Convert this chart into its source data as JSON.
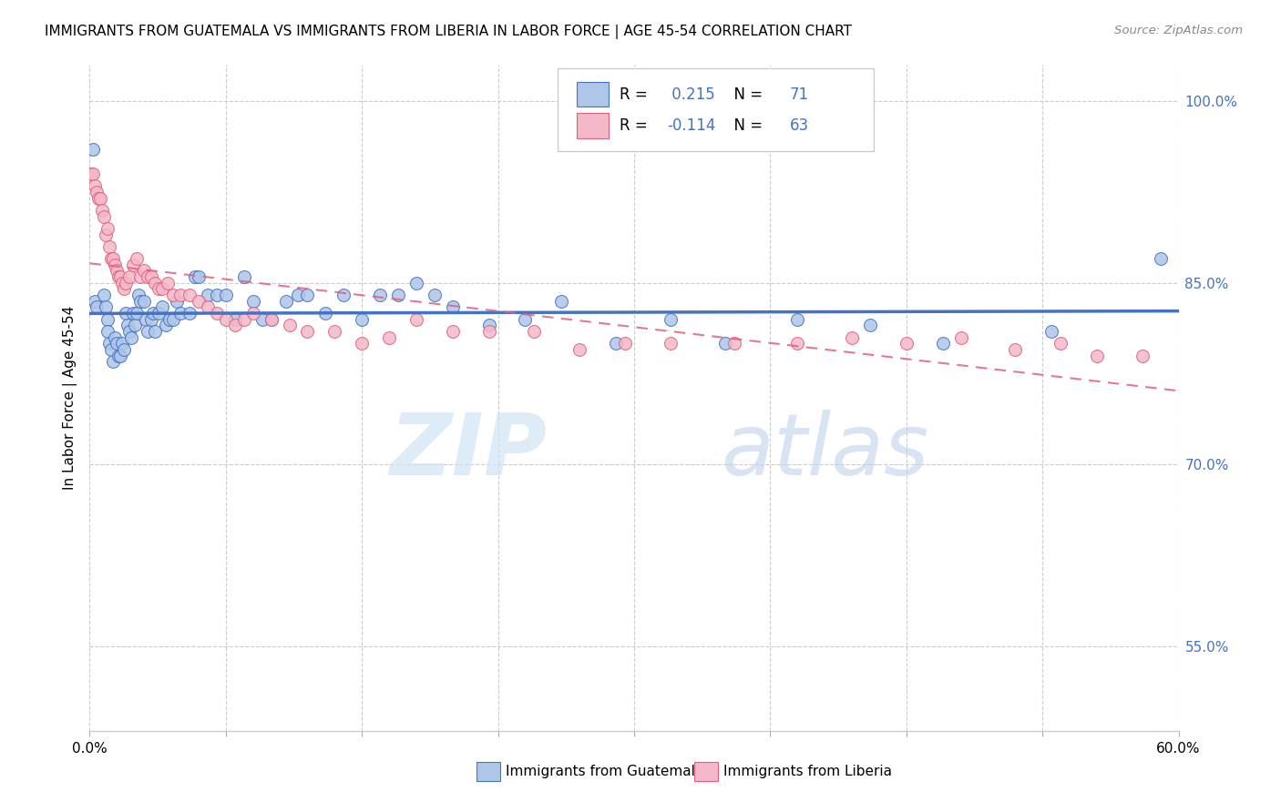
{
  "title": "IMMIGRANTS FROM GUATEMALA VS IMMIGRANTS FROM LIBERIA IN LABOR FORCE | AGE 45-54 CORRELATION CHART",
  "source": "Source: ZipAtlas.com",
  "ylabel": "In Labor Force | Age 45-54",
  "xmin": 0.0,
  "xmax": 0.6,
  "ymin": 0.48,
  "ymax": 1.03,
  "yticks": [
    0.55,
    0.7,
    0.85,
    1.0
  ],
  "ytick_labels": [
    "55.0%",
    "70.0%",
    "85.0%",
    "100.0%"
  ],
  "xticks": [
    0.0,
    0.075,
    0.15,
    0.225,
    0.3,
    0.375,
    0.45,
    0.525,
    0.6
  ],
  "xtick_labels": [
    "0.0%",
    "",
    "",
    "",
    "",
    "",
    "",
    "",
    "60.0%"
  ],
  "r_guatemala": 0.215,
  "n_guatemala": 71,
  "r_liberia": -0.114,
  "n_liberia": 63,
  "color_guatemala": "#aec6e8",
  "color_liberia": "#f4b8c8",
  "line_color_guatemala": "#4472C4",
  "line_color_liberia": "#e06080",
  "watermark_zip": "ZIP",
  "watermark_atlas": "atlas",
  "guatemala_x": [
    0.002,
    0.003,
    0.004,
    0.008,
    0.009,
    0.01,
    0.01,
    0.011,
    0.012,
    0.013,
    0.014,
    0.015,
    0.016,
    0.017,
    0.018,
    0.019,
    0.02,
    0.021,
    0.022,
    0.023,
    0.024,
    0.025,
    0.026,
    0.027,
    0.028,
    0.03,
    0.031,
    0.032,
    0.034,
    0.035,
    0.036,
    0.038,
    0.04,
    0.042,
    0.044,
    0.046,
    0.048,
    0.05,
    0.055,
    0.058,
    0.06,
    0.065,
    0.07,
    0.075,
    0.08,
    0.085,
    0.09,
    0.095,
    0.1,
    0.108,
    0.115,
    0.12,
    0.13,
    0.14,
    0.15,
    0.16,
    0.17,
    0.18,
    0.19,
    0.2,
    0.22,
    0.24,
    0.26,
    0.29,
    0.32,
    0.35,
    0.39,
    0.43,
    0.47,
    0.53,
    0.59
  ],
  "guatemala_y": [
    0.96,
    0.835,
    0.83,
    0.84,
    0.83,
    0.82,
    0.81,
    0.8,
    0.795,
    0.785,
    0.805,
    0.8,
    0.79,
    0.79,
    0.8,
    0.795,
    0.825,
    0.815,
    0.81,
    0.805,
    0.825,
    0.815,
    0.825,
    0.84,
    0.835,
    0.835,
    0.82,
    0.81,
    0.82,
    0.825,
    0.81,
    0.825,
    0.83,
    0.815,
    0.82,
    0.82,
    0.835,
    0.825,
    0.825,
    0.855,
    0.855,
    0.84,
    0.84,
    0.84,
    0.82,
    0.855,
    0.835,
    0.82,
    0.82,
    0.835,
    0.84,
    0.84,
    0.825,
    0.84,
    0.82,
    0.84,
    0.84,
    0.85,
    0.84,
    0.83,
    0.815,
    0.82,
    0.835,
    0.8,
    0.82,
    0.8,
    0.82,
    0.815,
    0.8,
    0.81,
    0.87
  ],
  "liberia_x": [
    0.001,
    0.002,
    0.003,
    0.004,
    0.005,
    0.006,
    0.007,
    0.008,
    0.009,
    0.01,
    0.011,
    0.012,
    0.013,
    0.014,
    0.015,
    0.016,
    0.017,
    0.018,
    0.019,
    0.02,
    0.022,
    0.024,
    0.026,
    0.028,
    0.03,
    0.032,
    0.034,
    0.036,
    0.038,
    0.04,
    0.043,
    0.046,
    0.05,
    0.055,
    0.06,
    0.065,
    0.07,
    0.075,
    0.08,
    0.085,
    0.09,
    0.1,
    0.11,
    0.12,
    0.135,
    0.15,
    0.165,
    0.18,
    0.2,
    0.22,
    0.245,
    0.27,
    0.295,
    0.32,
    0.355,
    0.39,
    0.42,
    0.45,
    0.48,
    0.51,
    0.535,
    0.555,
    0.58
  ],
  "liberia_y": [
    0.94,
    0.94,
    0.93,
    0.925,
    0.92,
    0.92,
    0.91,
    0.905,
    0.89,
    0.895,
    0.88,
    0.87,
    0.87,
    0.865,
    0.86,
    0.855,
    0.855,
    0.85,
    0.845,
    0.85,
    0.855,
    0.865,
    0.87,
    0.855,
    0.86,
    0.855,
    0.855,
    0.85,
    0.845,
    0.845,
    0.85,
    0.84,
    0.84,
    0.84,
    0.835,
    0.83,
    0.825,
    0.82,
    0.815,
    0.82,
    0.825,
    0.82,
    0.815,
    0.81,
    0.81,
    0.8,
    0.805,
    0.82,
    0.81,
    0.81,
    0.81,
    0.795,
    0.8,
    0.8,
    0.8,
    0.8,
    0.805,
    0.8,
    0.805,
    0.795,
    0.8,
    0.79,
    0.79
  ]
}
